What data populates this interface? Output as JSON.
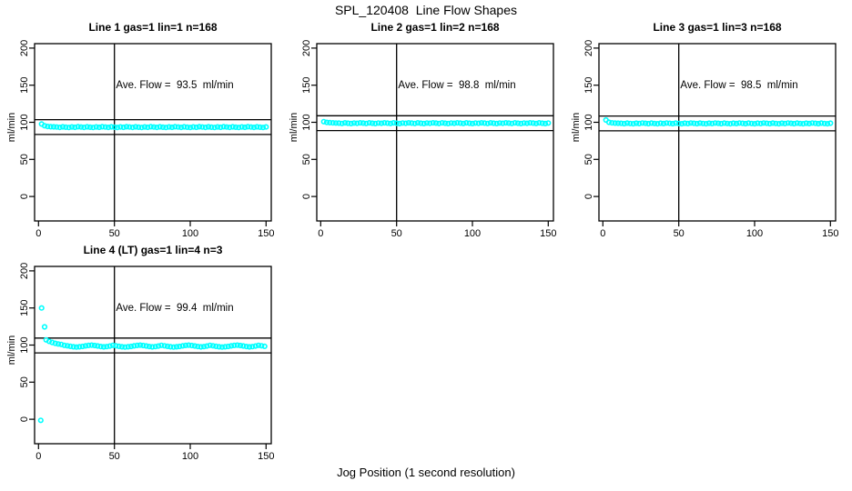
{
  "figure": {
    "title": "SPL_120408  Line Flow Shapes",
    "xlabel": "Jog Position (1 second resolution)",
    "background": "#FFFFFF",
    "point_color": "#00FFFF",
    "line_color": "#000000"
  },
  "chart_data": [
    {
      "type": "scatter",
      "title": "Line 1 gas=1 lin=1 n=168",
      "annotation": "Ave. Flow =  93.5  ml/min",
      "ave_flow": 93.5,
      "ylabel": "ml/min",
      "xticks": [
        0,
        50,
        100,
        150
      ],
      "yticks": [
        0,
        50,
        100,
        150,
        200
      ],
      "xlim": [
        -2.6,
        153.4
      ],
      "ylim": [
        -33,
        206
      ],
      "hlines": [
        103.5,
        83.5
      ],
      "vline": 50,
      "series": {
        "x_start": 2,
        "x_step": 2,
        "y": [
          97.6,
          95.3,
          94.4,
          94.0,
          93.8,
          93.6,
          93.1,
          93.9,
          93.4,
          93.0,
          93.7,
          93.3,
          94.0,
          93.6,
          93.1,
          93.9,
          93.4,
          93.0,
          93.7,
          93.3,
          94.0,
          93.6,
          93.1,
          93.9,
          93.4,
          93.0,
          93.7,
          93.3,
          94.0,
          93.6,
          93.1,
          93.9,
          93.4,
          93.0,
          93.7,
          93.3,
          94.0,
          93.6,
          93.1,
          93.9,
          93.4,
          93.0,
          93.7,
          93.3,
          94.0,
          93.6,
          93.1,
          93.9,
          93.4,
          93.0,
          93.7,
          93.3,
          94.0,
          93.6,
          93.1,
          93.9,
          93.4,
          93.0,
          93.7,
          93.3,
          94.0,
          93.6,
          93.1,
          93.9,
          93.4,
          93.0,
          93.7,
          93.3,
          94.0,
          93.6,
          93.1,
          93.9,
          93.4,
          93.0,
          93.7
        ]
      },
      "outliers": []
    },
    {
      "type": "scatter",
      "title": "Line 2 gas=1 lin=2 n=168",
      "annotation": "Ave. Flow =  98.8  ml/min",
      "ave_flow": 98.8,
      "ylabel": "ml/min",
      "xticks": [
        0,
        50,
        100,
        150
      ],
      "yticks": [
        0,
        50,
        100,
        150,
        200
      ],
      "xlim": [
        -2.6,
        153.4
      ],
      "ylim": [
        -33,
        206
      ],
      "hlines": [
        108.8,
        88.8
      ],
      "vline": 50,
      "series": {
        "x_start": 2,
        "x_step": 2,
        "y": [
          100.8,
          99.9,
          99.5,
          99.2,
          99.0,
          98.9,
          98.4,
          99.2,
          98.7,
          98.3,
          99.0,
          98.6,
          99.3,
          98.9,
          98.4,
          99.2,
          98.7,
          98.3,
          99.0,
          98.6,
          99.3,
          98.9,
          98.4,
          99.2,
          98.7,
          98.3,
          99.0,
          98.6,
          99.3,
          98.9,
          98.4,
          99.2,
          98.7,
          98.3,
          99.0,
          98.6,
          99.3,
          98.9,
          98.4,
          99.2,
          98.7,
          98.3,
          99.0,
          98.6,
          99.3,
          98.9,
          98.4,
          99.2,
          98.7,
          98.3,
          99.0,
          98.6,
          99.3,
          98.9,
          98.4,
          99.2,
          98.7,
          98.3,
          99.0,
          98.6,
          99.3,
          98.9,
          98.4,
          99.2,
          98.7,
          98.3,
          99.0,
          98.6,
          99.3,
          98.9,
          98.4,
          99.2,
          98.7,
          98.3,
          99.0
        ]
      },
      "outliers": []
    },
    {
      "type": "scatter",
      "title": "Line 3 gas=1 lin=3 n=168",
      "annotation": "Ave. Flow =  98.5  ml/min",
      "ave_flow": 98.5,
      "ylabel": "ml/min",
      "xticks": [
        0,
        50,
        100,
        150
      ],
      "yticks": [
        0,
        50,
        100,
        150,
        200
      ],
      "xlim": [
        -2.6,
        153.4
      ],
      "ylim": [
        -33,
        206
      ],
      "hlines": [
        108.5,
        88.5
      ],
      "vline": 50,
      "series": {
        "x_start": 2,
        "x_step": 2,
        "y": [
          103.0,
          100.0,
          99.3,
          98.9,
          98.7,
          98.6,
          98.1,
          98.9,
          98.4,
          98.0,
          98.7,
          98.3,
          99.0,
          98.6,
          98.1,
          98.9,
          98.4,
          98.0,
          98.7,
          98.3,
          99.0,
          98.6,
          98.1,
          98.9,
          98.4,
          98.0,
          98.7,
          98.3,
          99.0,
          98.6,
          98.1,
          98.9,
          98.4,
          98.0,
          98.7,
          98.3,
          99.0,
          98.6,
          98.1,
          98.9,
          98.4,
          98.0,
          98.7,
          98.3,
          99.0,
          98.6,
          98.1,
          98.9,
          98.4,
          98.0,
          98.7,
          98.3,
          99.0,
          98.6,
          98.1,
          98.9,
          98.4,
          98.0,
          98.7,
          98.3,
          99.0,
          98.6,
          98.1,
          98.9,
          98.4,
          98.0,
          98.7,
          98.3,
          99.0,
          98.6,
          98.1,
          98.9,
          98.4,
          98.0,
          98.7
        ]
      },
      "outliers": []
    },
    {
      "type": "scatter",
      "title": "Line 4 (LT) gas=1 lin=4 n=3",
      "annotation": "Ave. Flow =  99.4  ml/min",
      "ave_flow": 99.4,
      "ylabel": "ml/min",
      "xticks": [
        0,
        50,
        100,
        150
      ],
      "yticks": [
        0,
        50,
        100,
        150,
        200
      ],
      "xlim": [
        -2.6,
        153.4
      ],
      "ylim": [
        -33,
        206
      ],
      "hlines": [
        109.4,
        89.4
      ],
      "vline": 50,
      "series": {
        "x_start": 5,
        "x_step": 2,
        "y": [
          107.0,
          105.0,
          103.5,
          102.3,
          101.4,
          100.8,
          99.6,
          99.0,
          98.3,
          97.7,
          97.3,
          97.6,
          98.2,
          98.9,
          99.5,
          99.9,
          99.4,
          98.7,
          98.0,
          97.5,
          97.9,
          98.6,
          99.6,
          99.0,
          98.3,
          97.7,
          97.3,
          97.6,
          98.2,
          98.9,
          99.5,
          99.9,
          99.4,
          98.7,
          98.0,
          97.5,
          97.9,
          98.6,
          99.6,
          99.0,
          98.3,
          97.7,
          97.3,
          97.6,
          98.2,
          98.9,
          99.5,
          99.9,
          99.4,
          98.7,
          98.0,
          97.5,
          97.9,
          98.6,
          99.6,
          99.0,
          98.3,
          97.7,
          97.3,
          97.6,
          98.2,
          98.9,
          99.5,
          99.9,
          99.4,
          98.7,
          98.0,
          97.5,
          97.9,
          98.6,
          99.6,
          99.0,
          98.3
        ]
      },
      "outliers": [
        {
          "x": 2,
          "y": 150
        },
        {
          "x": 4,
          "y": 124.5
        },
        {
          "x": 1.5,
          "y": -1.5
        }
      ]
    }
  ]
}
